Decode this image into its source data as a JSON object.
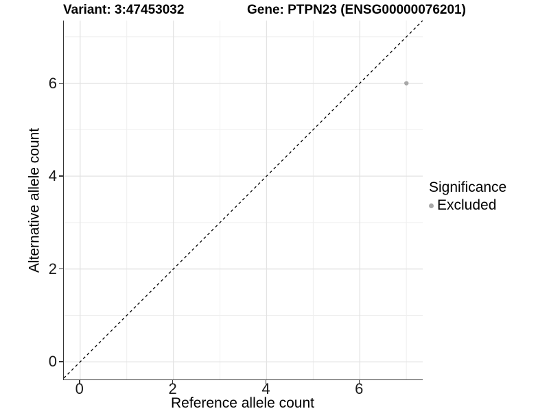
{
  "chart_data": {
    "type": "scatter",
    "title_left": "Variant: 3:47453032",
    "title_right": "Gene: PTPN23 (ENSG00000076201)",
    "xlabel": "Reference allele count",
    "ylabel": "Alternative allele count",
    "xlim": [
      -0.35,
      7.35
    ],
    "ylim": [
      -0.38,
      7.35
    ],
    "x_major_ticks": [
      0,
      2,
      4,
      6
    ],
    "y_major_ticks": [
      0,
      2,
      4,
      6
    ],
    "x_minor_ticks": [
      1,
      3,
      5,
      7
    ],
    "y_minor_ticks": [
      1,
      3,
      5,
      7
    ],
    "grid": true,
    "points": [
      {
        "x": 7,
        "y": 6,
        "significance": "Excluded"
      }
    ],
    "point_radius_px": 3.2,
    "reference_line": {
      "type": "identity y=x",
      "from": [
        -0.35,
        -0.35
      ],
      "to": [
        7.35,
        7.35
      ],
      "style": "dashed",
      "color": "#000000"
    },
    "legend": {
      "title": "Significance",
      "position": "right",
      "items": [
        {
          "label": "Excluded",
          "color": "#a8a8a8"
        }
      ]
    },
    "colors": {
      "excluded_point": "#a8a8a8",
      "grid_major": "#e3e3e3",
      "grid_minor": "#efefef",
      "axis_line": "#333333",
      "tick_text": "#1a1a1a",
      "title_text": "#000000",
      "background": "#ffffff"
    }
  }
}
